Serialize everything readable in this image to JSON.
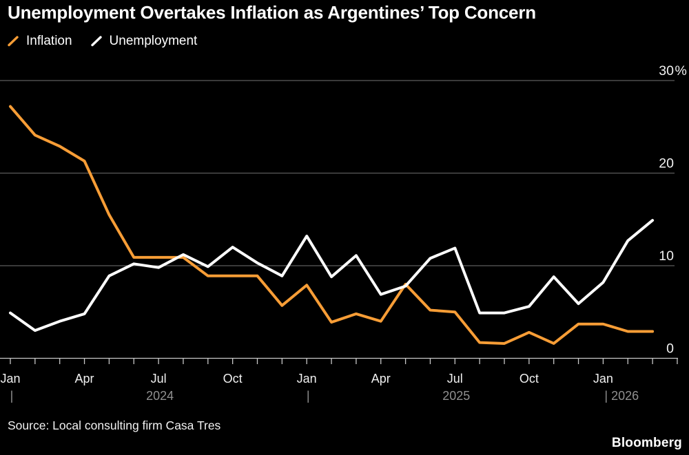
{
  "title": "Unemployment Overtakes Inflation as Argentines’ Top Concern",
  "source": "Source: Local consulting firm Casa Tres",
  "brand": "Bloomberg",
  "colors": {
    "background": "#000000",
    "title": "#FFFFFF",
    "gridline": "#5C5C5C",
    "axis_line": "#C9C9C9",
    "y_label": "#F2F2F2",
    "x_label": "#F0F0F0",
    "year_label": "#909090",
    "inflation": "#F79D36",
    "unemployment": "#FFFFFF"
  },
  "chart_data": {
    "type": "line",
    "title": "Unemployment Overtakes Inflation as Argentines’ Top Concern",
    "unit": "%",
    "grid": "horizontal",
    "legend_position": "top-left",
    "ylim": [
      0,
      30
    ],
    "x": [
      "Jan 2024",
      "Feb 2024",
      "Mar 2024",
      "Apr 2024",
      "May 2024",
      "Jun 2024",
      "Jul 2024",
      "Aug 2024",
      "Sep 2024",
      "Oct 2024",
      "Nov 2024",
      "Dec 2024",
      "Jan 2025",
      "Feb 2025",
      "Mar 2025",
      "Apr 2025",
      "May 2025",
      "Jun 2025",
      "Jul 2025",
      "Aug 2025",
      "Sep 2025",
      "Oct 2025",
      "Nov 2025",
      "Dec 2025",
      "Jan 2026",
      "Feb 2026",
      "Mar 2026"
    ],
    "series": [
      {
        "name": "Inflation",
        "color": "#F79D36",
        "values": [
          27.2,
          24.1,
          22.9,
          21.3,
          15.5,
          10.9,
          10.9,
          10.9,
          8.9,
          8.9,
          8.9,
          5.7,
          7.9,
          3.9,
          4.8,
          4.0,
          8.0,
          5.2,
          5.0,
          1.7,
          1.6,
          2.8,
          1.6,
          3.7,
          3.7,
          2.9,
          2.9
        ]
      },
      {
        "name": "Unemployment",
        "color": "#FFFFFF",
        "values": [
          4.9,
          3.0,
          4.0,
          4.8,
          8.9,
          10.2,
          9.8,
          11.2,
          9.9,
          12.0,
          10.3,
          8.9,
          13.2,
          8.8,
          11.1,
          6.9,
          7.8,
          10.8,
          11.9,
          4.9,
          4.9,
          5.6,
          8.8,
          5.9,
          8.2,
          12.7,
          14.9
        ]
      }
    ],
    "y_ticks": [
      {
        "value": 0,
        "label": "0",
        "suffix": ""
      },
      {
        "value": 10,
        "label": "10",
        "suffix": ""
      },
      {
        "value": 20,
        "label": "20",
        "suffix": ""
      },
      {
        "value": 30,
        "label": "30",
        "suffix": "%"
      }
    ],
    "x_axis": {
      "month_labels": [
        {
          "i": 0,
          "t": "Jan"
        },
        {
          "i": 3,
          "t": "Apr"
        },
        {
          "i": 6,
          "t": "Jul"
        },
        {
          "i": 9,
          "t": "Oct"
        },
        {
          "i": 12,
          "t": "Jan"
        },
        {
          "i": 15,
          "t": "Apr"
        },
        {
          "i": 18,
          "t": "Jul"
        },
        {
          "i": 21,
          "t": "Oct"
        },
        {
          "i": 24,
          "t": "Jan"
        }
      ],
      "year_row": [
        {
          "i": 0,
          "t": "|",
          "anchor": "middle"
        },
        {
          "i": 6,
          "t": "2024",
          "anchor": "middle"
        },
        {
          "i": 12,
          "t": "|",
          "anchor": "middle"
        },
        {
          "i": 18,
          "t": "2025",
          "anchor": "middle"
        },
        {
          "i": 24,
          "t": "| 2026",
          "anchor": "start"
        }
      ]
    }
  }
}
